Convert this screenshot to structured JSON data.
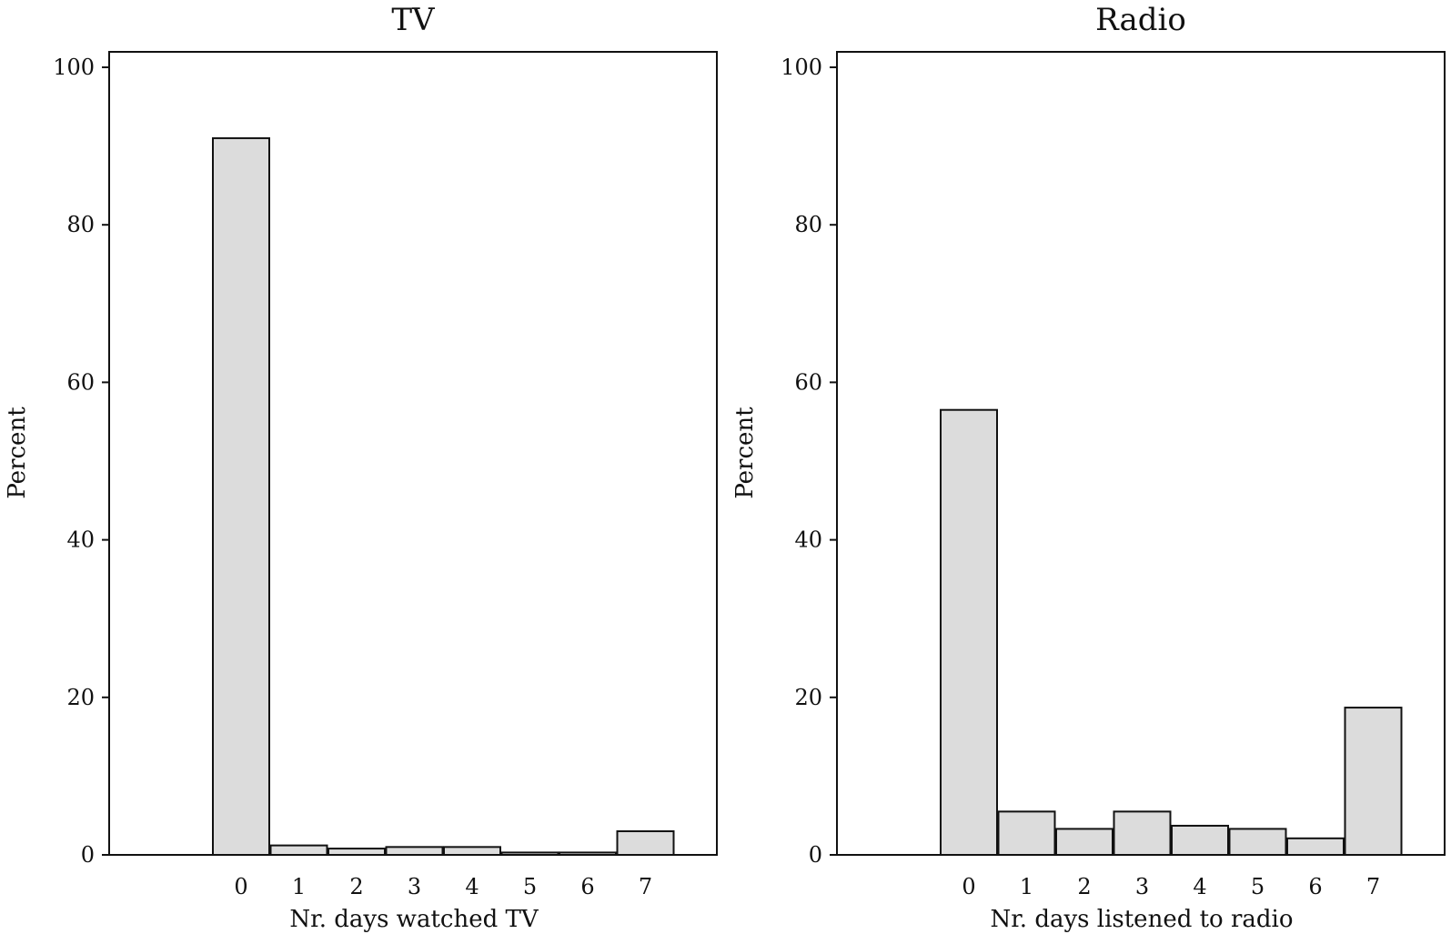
{
  "chart_data": [
    {
      "type": "bar",
      "title": "TV",
      "xlabel": "Nr. days watched TV",
      "ylabel": "Percent",
      "categories": [
        "0",
        "1",
        "2",
        "3",
        "4",
        "5",
        "6",
        "7"
      ],
      "values": [
        91.0,
        1.2,
        0.8,
        1.0,
        1.0,
        0.3,
        0.3,
        3.0
      ],
      "ylim": [
        0,
        100
      ],
      "yticks": [
        "0",
        "20",
        "40",
        "60",
        "80",
        "100"
      ],
      "bar_color": "#dcdcdc",
      "grid": false
    },
    {
      "type": "bar",
      "title": "Radio",
      "xlabel": "Nr. days listened to radio",
      "ylabel": "Percent",
      "categories": [
        "0",
        "1",
        "2",
        "3",
        "4",
        "5",
        "6",
        "7"
      ],
      "values": [
        56.5,
        5.5,
        3.3,
        5.5,
        3.7,
        3.3,
        2.1,
        18.7
      ],
      "ylim": [
        0,
        100
      ],
      "yticks": [
        "0",
        "20",
        "40",
        "60",
        "80",
        "100"
      ],
      "bar_color": "#dcdcdc",
      "grid": false
    }
  ]
}
